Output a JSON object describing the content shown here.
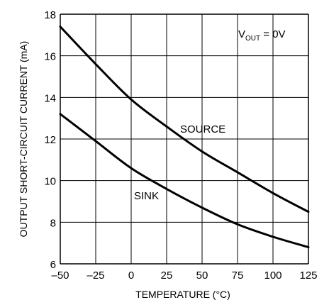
{
  "chart_data": {
    "type": "line",
    "title": "",
    "xlabel": "TEMPERATURE (°C)",
    "ylabel": "OUTPUT SHORT-CIRCUIT CURRENT (mA)",
    "xlim": [
      -50,
      125
    ],
    "ylim": [
      6,
      18
    ],
    "xticks": [
      -50,
      -25,
      0,
      25,
      50,
      75,
      100,
      125
    ],
    "yticks": [
      6,
      8,
      10,
      12,
      14,
      16,
      18
    ],
    "xtick_labels": [
      "–50",
      "–25",
      "0",
      "25",
      "50",
      "75",
      "100",
      "125"
    ],
    "ytick_labels": [
      "6",
      "8",
      "10",
      "12",
      "14",
      "16",
      "18"
    ],
    "grid": true,
    "annotation": {
      "main": "V",
      "sub": "OUT",
      "rest": " = 0V"
    },
    "series": [
      {
        "name": "SOURCE",
        "x": [
          -50,
          -25,
          0,
          25,
          50,
          75,
          100,
          125
        ],
        "values": [
          17.4,
          15.6,
          13.9,
          12.6,
          11.4,
          10.4,
          9.4,
          8.5
        ]
      },
      {
        "name": "SINK",
        "x": [
          -50,
          -25,
          0,
          25,
          50,
          75,
          100,
          125
        ],
        "values": [
          13.2,
          11.9,
          10.6,
          9.6,
          8.7,
          7.9,
          7.3,
          6.8
        ]
      }
    ],
    "colors": {
      "grid": "#000000",
      "line": "#000000"
    }
  }
}
